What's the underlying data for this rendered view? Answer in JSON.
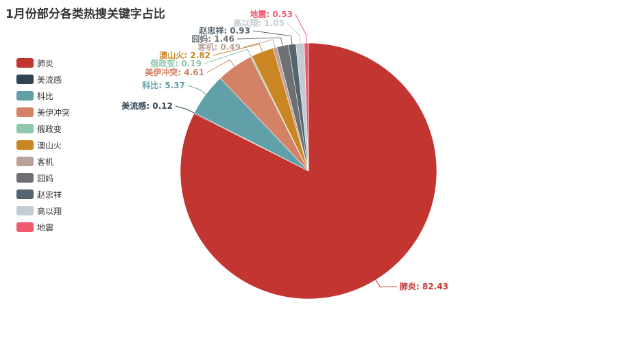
{
  "chart_data": {
    "type": "pie",
    "title": "1月份部分各类热搜关键字占比",
    "legend_position": "left",
    "slices": [
      {
        "name": "肺炎",
        "value": 82.43,
        "color": "#c23531"
      },
      {
        "name": "美流感",
        "value": 0.12,
        "color": "#2f4554"
      },
      {
        "name": "科比",
        "value": 5.37,
        "color": "#61a0a8"
      },
      {
        "name": "美伊冲突",
        "value": 4.61,
        "color": "#d48265"
      },
      {
        "name": "俄政变",
        "value": 0.19,
        "color": "#91c7ae"
      },
      {
        "name": "澳山火",
        "value": 2.82,
        "color": "#ca8622"
      },
      {
        "name": "客机",
        "value": 0.49,
        "color": "#bda29a"
      },
      {
        "name": "囧妈",
        "value": 1.46,
        "color": "#6e7074"
      },
      {
        "name": "赵忠祥",
        "value": 0.93,
        "color": "#546570"
      },
      {
        "name": "高以翔",
        "value": 1.05,
        "color": "#c4ccd3"
      },
      {
        "name": "地震",
        "value": 0.53,
        "color": "#f05b72"
      }
    ]
  }
}
